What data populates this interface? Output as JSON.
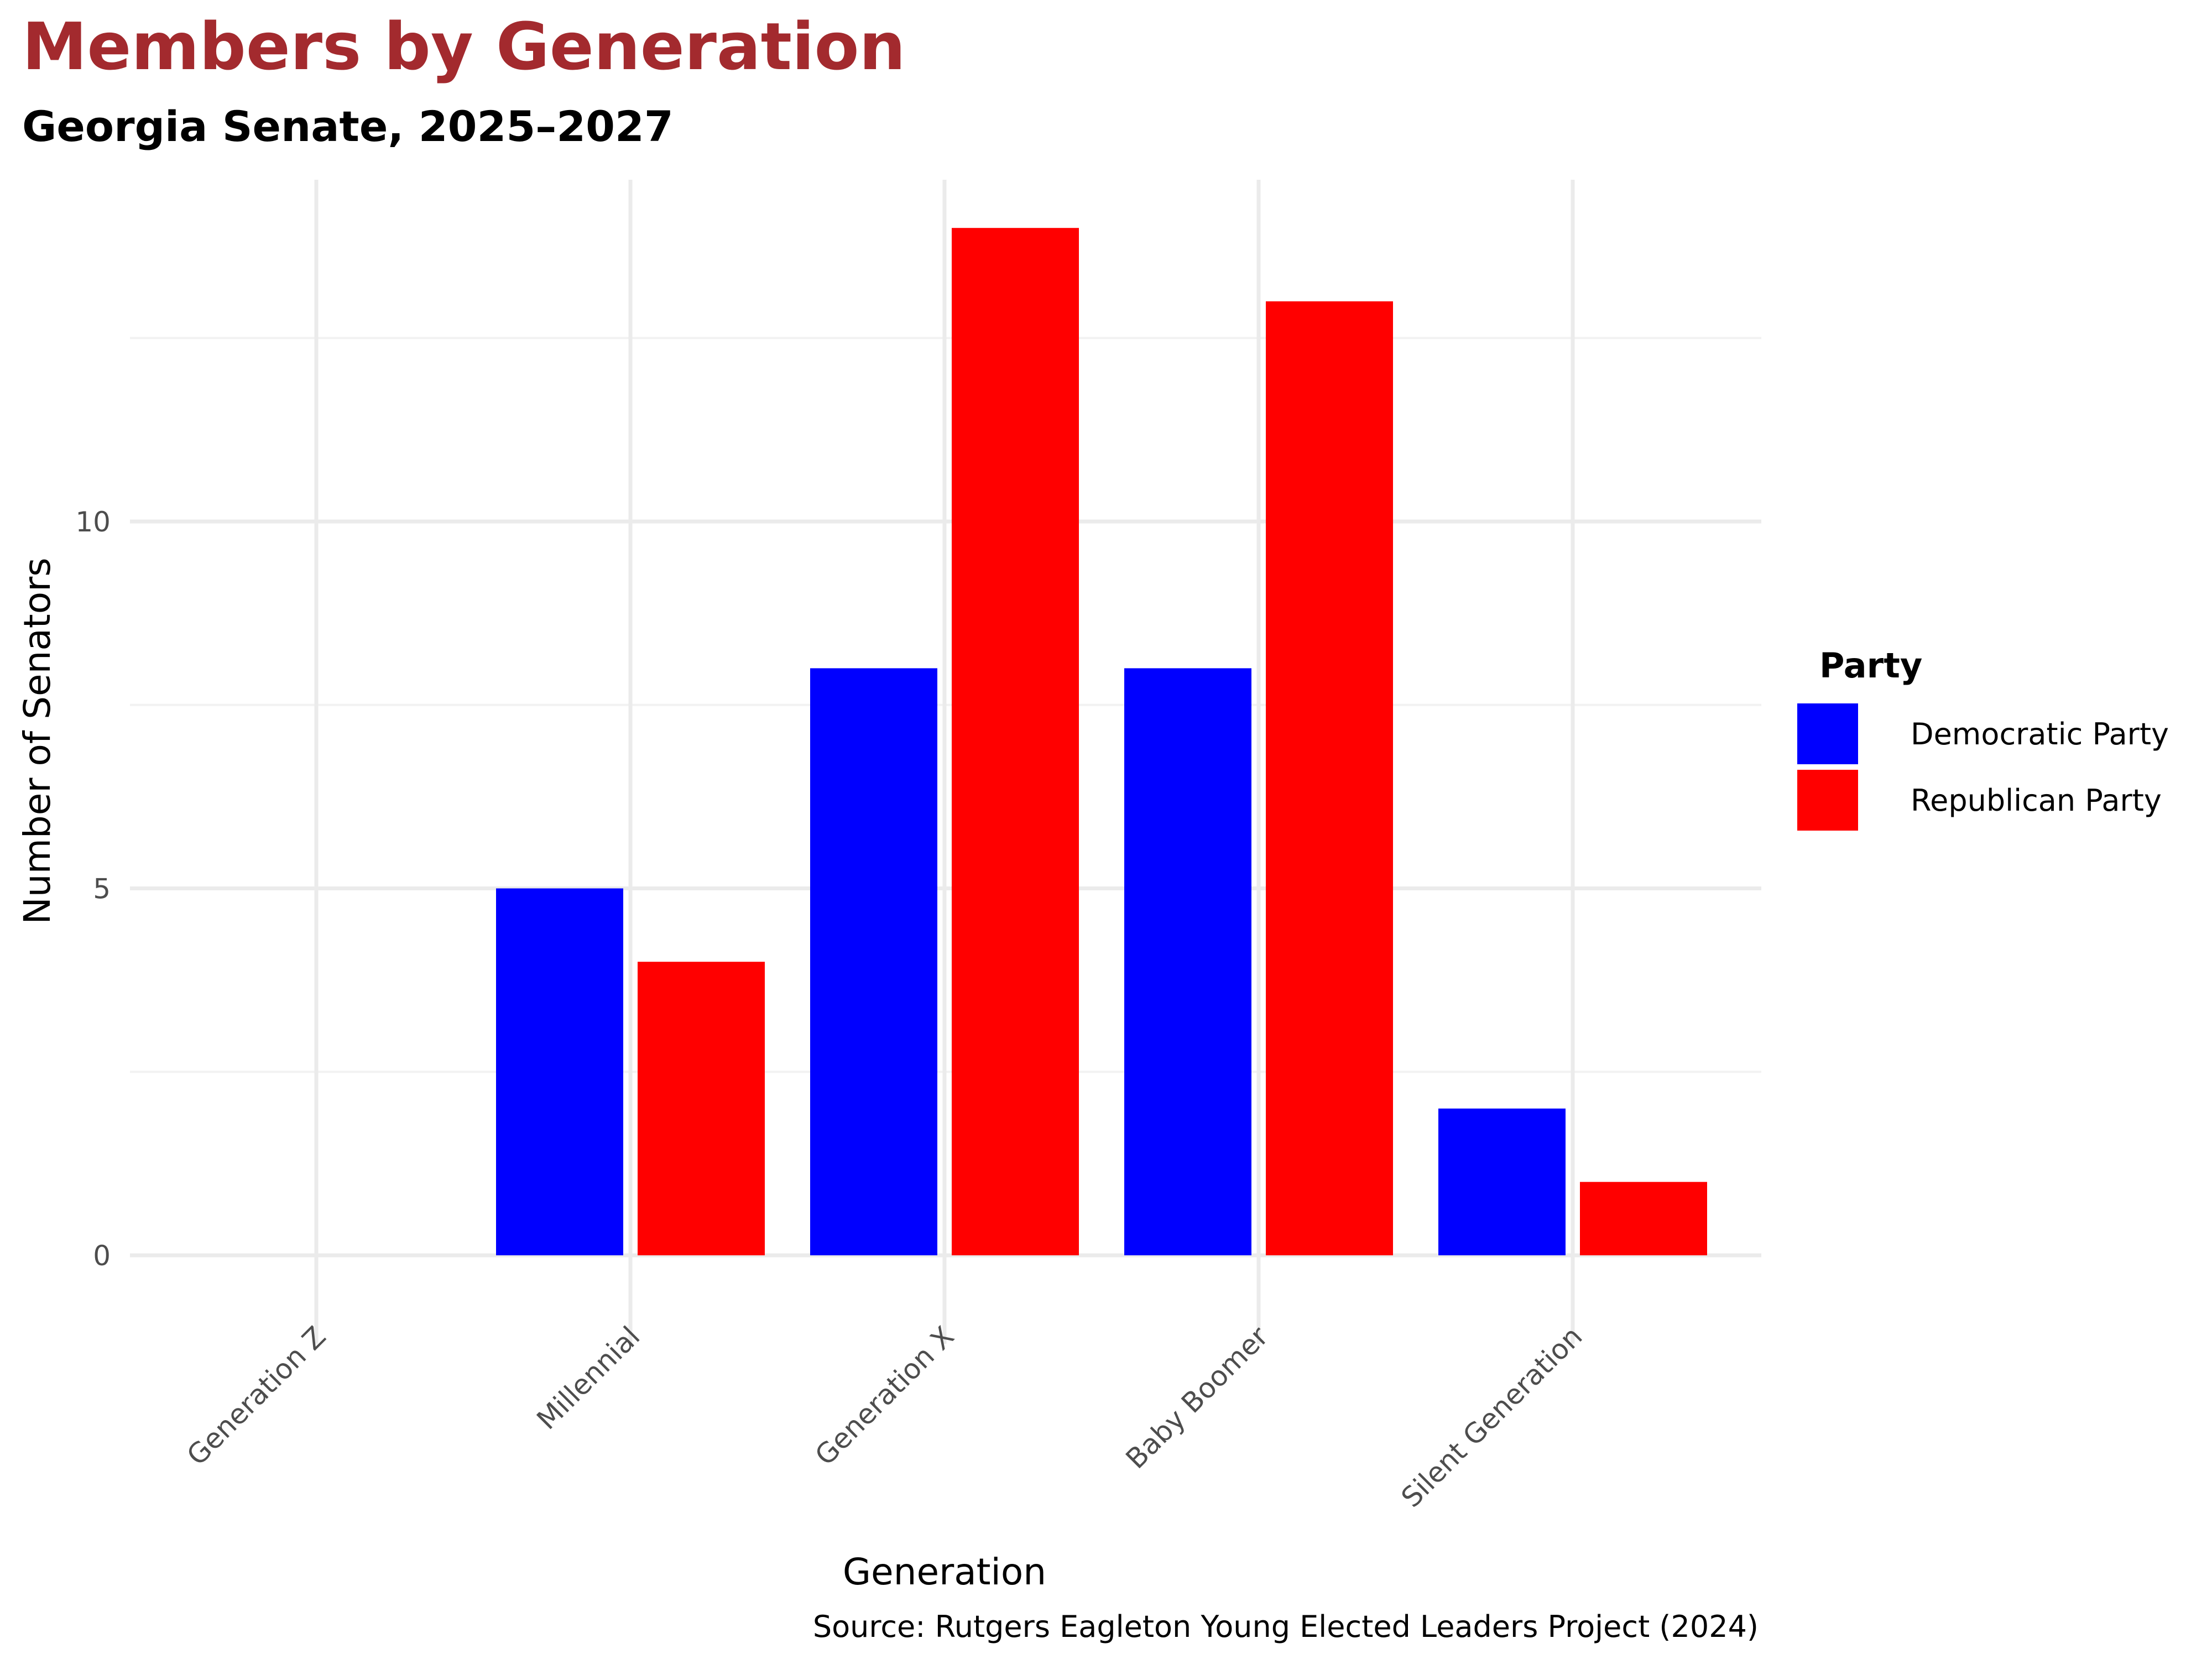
{
  "chart_data": {
    "type": "bar",
    "title": "Members by Generation",
    "subtitle": "Georgia Senate, 2025–2027",
    "xlabel": "Generation",
    "ylabel": "Number of Senators",
    "caption": "Source: Rutgers Eagleton Young Elected Leaders Project (2024)",
    "categories": [
      "Generation Z",
      "Millennial",
      "Generation X",
      "Baby Boomer",
      "Silent Generation"
    ],
    "series": [
      {
        "name": "Democratic Party",
        "color": "#0000ff",
        "values": [
          0,
          5,
          8,
          8,
          2
        ]
      },
      {
        "name": "Republican Party",
        "color": "#ff0000",
        "values": [
          0,
          4,
          14,
          13,
          1
        ]
      }
    ],
    "ylim": [
      -1.2,
      14.7
    ],
    "yticks": [
      0,
      5,
      10
    ],
    "ytick_labels": [
      "0",
      "5",
      "10"
    ],
    "minor_yticks": [
      2.5,
      7.5,
      12.5
    ],
    "grid": true,
    "legend": {
      "title": "Party",
      "position": "right"
    },
    "colors": {
      "title": "#a32a2e",
      "grid": "#ebebeb"
    }
  }
}
